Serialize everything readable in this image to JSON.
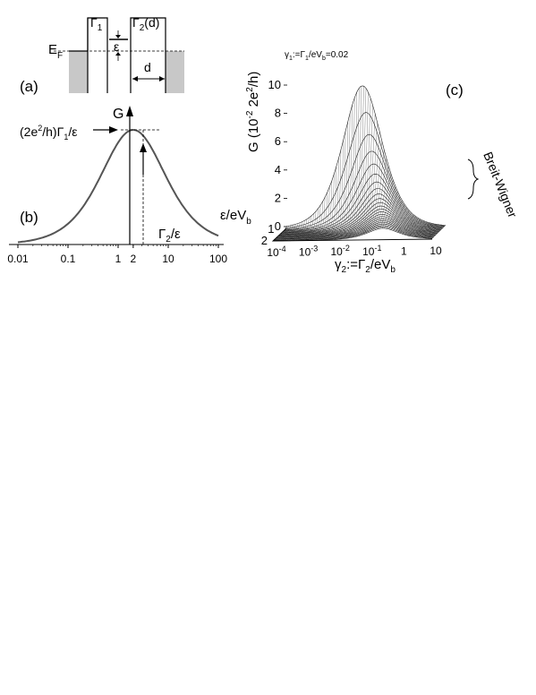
{
  "panel_a": {
    "tag": "(a)",
    "barrier_left": "Γ",
    "barrier_left_sub": "1",
    "barrier_right": "Γ",
    "barrier_right_sub": "2",
    "barrier_right_arg": "(d)",
    "level": "ε",
    "fermi": "E",
    "fermi_sub": "F",
    "width": "d"
  },
  "panel_b": {
    "tag": "(b)",
    "ylabel": "G",
    "peak_label_pre": "(2e",
    "peak_label_sup": "2",
    "peak_label_mid": "/h)Γ",
    "peak_label_sub": "1",
    "peak_label_post": "/ε",
    "xlabel": "Γ",
    "xlabel_sub": "2",
    "xlabel_post": "/ε",
    "markers": [
      "1",
      "2"
    ]
  },
  "panel_c": {
    "tag": "(c)",
    "zlabel_pre": "G (10",
    "zlabel_sup1": "-2",
    "zlabel_mid": " 2e",
    "zlabel_sup2": "2",
    "zlabel_post": "/h)",
    "param_pre": "γ",
    "param_sub1": "1",
    "param_mid": ":=Γ",
    "param_sub2": "1",
    "param_mid2": "/eV",
    "param_sub3": "b",
    "param_post": "=0.02",
    "eps_label_pre": "ε/eV",
    "eps_label_sub": "b",
    "xlabel_pre": "γ",
    "xlabel_sub": "2",
    "xlabel_mid": ":=Γ",
    "xlabel_sub2": "2",
    "xlabel_mid2": "/eV",
    "xlabel_sub3": "b",
    "bw_label": "Breit-Wigner"
  },
  "chart_data": [
    {
      "type": "line",
      "xlabel": "Γ2/ε",
      "ylabel": "G",
      "x_scale": "log",
      "xlim": [
        0.01,
        100
      ],
      "x_ticks": [
        "0.01",
        "0.1",
        "1",
        "2",
        "10",
        "100"
      ],
      "series": [
        {
          "x": [
            0.01,
            0.03,
            0.1,
            0.3,
            0.5,
            1,
            1.5,
            2,
            3,
            5,
            10,
            30,
            100
          ],
          "values": [
            0.04,
            0.06,
            0.16,
            0.4,
            0.6,
            0.86,
            0.97,
            1.0,
            0.95,
            0.78,
            0.48,
            0.17,
            0.05
          ]
        }
      ]
    },
    {
      "type": "surface",
      "zlabel": "G (10^-2 2e^2/h)",
      "xlabel": "γ2:=Γ2/eVb",
      "ylabel": "ε/eVb",
      "x_scale": "log",
      "xlim": [
        0.0001,
        10
      ],
      "zlim": [
        0,
        10
      ],
      "z_ticks": [
        "0",
        "2",
        "4",
        "6",
        "8",
        "10"
      ],
      "x_ticks": [
        "10^-4",
        "10^-3",
        "10^-2",
        "10^-1",
        "1",
        "10"
      ],
      "y_ticks": [
        "1",
        "2"
      ],
      "peak": {
        "x": 0.04,
        "z": 10
      }
    }
  ]
}
